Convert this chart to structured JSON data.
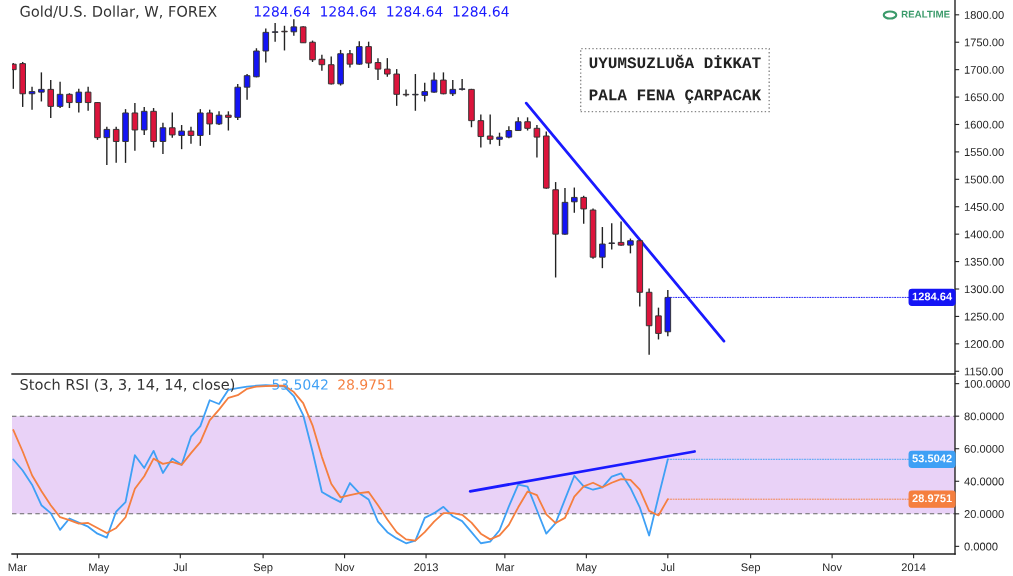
{
  "chart_data": [
    {
      "type": "candlestick",
      "title": "Gold/U.S. Dollar, W, FOREX",
      "subtitle": "1284.64  1284.64  1284.64  1284.64",
      "x": [
        "2012-02-27",
        "2012-03-05",
        "2012-03-12",
        "2012-03-19",
        "2012-03-26",
        "2012-04-02",
        "2012-04-09",
        "2012-04-16",
        "2012-04-23",
        "2012-04-30",
        "2012-05-07",
        "2012-05-14",
        "2012-05-21",
        "2012-05-28",
        "2012-06-04",
        "2012-06-11",
        "2012-06-18",
        "2012-06-25",
        "2012-07-02",
        "2012-07-09",
        "2012-07-16",
        "2012-07-23",
        "2012-07-30",
        "2012-08-06",
        "2012-08-13",
        "2012-08-20",
        "2012-08-27",
        "2012-09-03",
        "2012-09-10",
        "2012-09-17",
        "2012-09-24",
        "2012-10-01",
        "2012-10-08",
        "2012-10-15",
        "2012-10-22",
        "2012-10-29",
        "2012-11-05",
        "2012-11-12",
        "2012-11-19",
        "2012-11-26",
        "2012-12-03",
        "2012-12-10",
        "2012-12-17",
        "2012-12-24",
        "2012-12-31",
        "2013-01-07",
        "2013-01-14",
        "2013-01-21",
        "2013-01-28",
        "2013-02-04",
        "2013-02-11",
        "2013-02-18",
        "2013-02-25",
        "2013-03-04",
        "2013-03-11",
        "2013-03-18",
        "2013-03-25",
        "2013-04-01",
        "2013-04-08",
        "2013-04-15",
        "2013-04-22",
        "2013-04-29",
        "2013-05-06",
        "2013-05-13",
        "2013-05-20",
        "2013-05-27",
        "2013-06-03",
        "2013-06-10",
        "2013-06-17",
        "2013-06-24",
        "2013-07-01"
      ],
      "ohlc": [
        [
          1710,
          1712,
          1665,
          1700
        ],
        [
          1711,
          1714,
          1632,
          1656
        ],
        [
          1656,
          1669,
          1627,
          1660
        ],
        [
          1659,
          1695,
          1642,
          1664
        ],
        [
          1664,
          1681,
          1612,
          1633
        ],
        [
          1633,
          1678,
          1630,
          1655
        ],
        [
          1655,
          1657,
          1630,
          1640
        ],
        [
          1640,
          1665,
          1622,
          1659
        ],
        [
          1659,
          1669,
          1625,
          1640
        ],
        [
          1640,
          1641,
          1572,
          1576
        ],
        [
          1576,
          1596,
          1526,
          1591
        ],
        [
          1591,
          1596,
          1530,
          1569
        ],
        [
          1569,
          1628,
          1530,
          1621
        ],
        [
          1621,
          1639,
          1552,
          1590
        ],
        [
          1590,
          1632,
          1581,
          1624
        ],
        [
          1624,
          1630,
          1558,
          1569
        ],
        [
          1569,
          1603,
          1546,
          1594
        ],
        [
          1594,
          1622,
          1576,
          1581
        ],
        [
          1580,
          1599,
          1555,
          1588
        ],
        [
          1588,
          1596,
          1565,
          1580
        ],
        [
          1580,
          1628,
          1561,
          1621
        ],
        [
          1621,
          1627,
          1581,
          1601
        ],
        [
          1601,
          1624,
          1599,
          1617
        ],
        [
          1617,
          1624,
          1589,
          1613
        ],
        [
          1613,
          1674,
          1608,
          1668
        ],
        [
          1668,
          1692,
          1645,
          1689
        ],
        [
          1687,
          1739,
          1686,
          1734
        ],
        [
          1734,
          1775,
          1713,
          1768
        ],
        [
          1768,
          1785,
          1751,
          1769
        ],
        [
          1770,
          1780,
          1735,
          1769
        ],
        [
          1769,
          1792,
          1762,
          1778
        ],
        [
          1778,
          1779,
          1749,
          1749
        ],
        [
          1750,
          1753,
          1714,
          1718
        ],
        [
          1719,
          1727,
          1698,
          1709
        ],
        [
          1709,
          1724,
          1673,
          1674
        ],
        [
          1674,
          1736,
          1671,
          1729
        ],
        [
          1729,
          1736,
          1704,
          1710
        ],
        [
          1710,
          1752,
          1709,
          1742
        ],
        [
          1742,
          1751,
          1703,
          1712
        ],
        [
          1713,
          1721,
          1681,
          1701
        ],
        [
          1701,
          1721,
          1687,
          1692
        ],
        [
          1692,
          1701,
          1634,
          1655
        ],
        [
          1655,
          1664,
          1651,
          1654
        ],
        [
          1654,
          1692,
          1625,
          1655
        ],
        [
          1653,
          1676,
          1642,
          1660
        ],
        [
          1659,
          1695,
          1658,
          1681
        ],
        [
          1681,
          1695,
          1655,
          1656
        ],
        [
          1656,
          1681,
          1652,
          1664
        ],
        [
          1664,
          1683,
          1662,
          1665
        ],
        [
          1664,
          1665,
          1595,
          1607
        ],
        [
          1607,
          1618,
          1558,
          1578
        ],
        [
          1579,
          1618,
          1564,
          1573
        ],
        [
          1573,
          1585,
          1561,
          1577
        ],
        [
          1577,
          1597,
          1575,
          1589
        ],
        [
          1589,
          1613,
          1588,
          1605
        ],
        [
          1605,
          1613,
          1589,
          1593
        ],
        [
          1593,
          1599,
          1540,
          1577
        ],
        [
          1579,
          1587,
          1483,
          1484
        ],
        [
          1481,
          1495,
          1321,
          1400
        ],
        [
          1400,
          1484,
          1399,
          1458
        ],
        [
          1459,
          1485,
          1439,
          1467
        ],
        [
          1467,
          1470,
          1419,
          1446
        ],
        [
          1444,
          1447,
          1355,
          1358
        ],
        [
          1358,
          1413,
          1338,
          1382
        ],
        [
          1383,
          1420,
          1372,
          1384
        ],
        [
          1385,
          1423,
          1379,
          1380
        ],
        [
          1380,
          1392,
          1365,
          1388
        ],
        [
          1388,
          1390,
          1268,
          1294
        ],
        [
          1294,
          1301,
          1180,
          1233
        ],
        [
          1251,
          1266,
          1208,
          1219
        ],
        [
          1222,
          1298,
          1214,
          1284.64
        ]
      ],
      "colors": [
        "#dc143c",
        "#dc143c",
        "#1414f5",
        "#1414f5",
        "#dc143c",
        "#1414f5",
        "#dc143c",
        "#1414f5",
        "#dc143c",
        "#dc143c",
        "#1414f5",
        "#dc143c",
        "#1414f5",
        "#dc143c",
        "#1414f5",
        "#dc143c",
        "#1414f5",
        "#dc143c",
        "#1414f5",
        "#dc143c",
        "#1414f5",
        "#dc143c",
        "#1414f5",
        "#dc143c",
        "#1414f5",
        "#1414f5",
        "#1414f5",
        "#1414f5",
        "#1414f5",
        "#dc143c",
        "#1414f5",
        "#dc143c",
        "#dc143c",
        "#dc143c",
        "#dc143c",
        "#1414f5",
        "#dc143c",
        "#1414f5",
        "#dc143c",
        "#dc143c",
        "#dc143c",
        "#dc143c",
        "#dc143c",
        "#1414f5",
        "#1414f5",
        "#1414f5",
        "#dc143c",
        "#1414f5",
        "#1414f5",
        "#dc143c",
        "#dc143c",
        "#dc143c",
        "#1414f5",
        "#1414f5",
        "#1414f5",
        "#dc143c",
        "#dc143c",
        "#dc143c",
        "#dc143c",
        "#1414f5",
        "#1414f5",
        "#dc143c",
        "#dc143c",
        "#1414f5",
        "#1414f5",
        "#dc143c",
        "#1414f5",
        "#dc143c",
        "#dc143c",
        "#dc143c",
        "#1414f5"
      ],
      "series": [
        {
          "type": "line",
          "x": [
            "2013-03-17",
            "2013-08-12"
          ],
          "values": [
            1639,
            1205
          ],
          "color": "#1a1aff"
        }
      ],
      "xlim": [
        "2012-02-26",
        "2014-02-01"
      ],
      "ylim": [
        1145,
        1827
      ],
      "yticks": [
        {
          "value": 1150,
          "label": "1150.00"
        },
        {
          "value": 1200,
          "label": "1200.00"
        },
        {
          "value": 1250,
          "label": "1250.00"
        },
        {
          "value": 1300,
          "label": "1300.00"
        },
        {
          "value": 1350,
          "label": "1350.00"
        },
        {
          "value": 1400,
          "label": "1400.00"
        },
        {
          "value": 1450,
          "label": "1450.00"
        },
        {
          "value": 1500,
          "label": "1500.00"
        },
        {
          "value": 1550,
          "label": "1550.00"
        },
        {
          "value": 1600,
          "label": "1600.00"
        },
        {
          "value": 1650,
          "label": "1650.00"
        },
        {
          "value": 1700,
          "label": "1700.00"
        },
        {
          "value": 1750,
          "label": "1750.00"
        },
        {
          "value": 1800,
          "label": "1800.00"
        }
      ],
      "tick_labels": "y",
      "annotations": [
        "UYUMSUZLUĞA DİKKAT",
        "PALA FENA ÇARPACAK",
        "REALTIME",
        {
          "text": "1284.64",
          "x": "2013-07-01",
          "y": 1284.64
        }
      ]
    },
    {
      "type": "line",
      "title": "Stoch RSI (3, 3, 14, 14, close)",
      "x": [
        "2012-02-27",
        "2012-03-05",
        "2012-03-12",
        "2012-03-19",
        "2012-03-26",
        "2012-04-02",
        "2012-04-09",
        "2012-04-16",
        "2012-04-23",
        "2012-04-30",
        "2012-05-07",
        "2012-05-14",
        "2012-05-21",
        "2012-05-28",
        "2012-06-04",
        "2012-06-11",
        "2012-06-18",
        "2012-06-25",
        "2012-07-02",
        "2012-07-09",
        "2012-07-16",
        "2012-07-23",
        "2012-07-30",
        "2012-08-06",
        "2012-08-13",
        "2012-08-20",
        "2012-08-27",
        "2012-09-03",
        "2012-09-10",
        "2012-09-17",
        "2012-09-24",
        "2012-10-01",
        "2012-10-08",
        "2012-10-15",
        "2012-10-22",
        "2012-10-29",
        "2012-11-05",
        "2012-11-12",
        "2012-11-19",
        "2012-11-26",
        "2012-12-03",
        "2012-12-10",
        "2012-12-17",
        "2012-12-24",
        "2012-12-31",
        "2013-01-07",
        "2013-01-14",
        "2013-01-21",
        "2013-01-28",
        "2013-02-04",
        "2013-02-11",
        "2013-02-18",
        "2013-02-25",
        "2013-03-04",
        "2013-03-11",
        "2013-03-18",
        "2013-03-25",
        "2013-04-01",
        "2013-04-08",
        "2013-04-15",
        "2013-04-22",
        "2013-04-29",
        "2013-05-06",
        "2013-05-13",
        "2013-05-20",
        "2013-05-27",
        "2013-06-03",
        "2013-06-10",
        "2013-06-17",
        "2013-06-24",
        "2013-07-01"
      ],
      "series": [
        {
          "color": "#3fa0f5",
          "values": [
            53.4,
            46.6,
            37.9,
            25.3,
            20.4,
            10.1,
            17.1,
            14.6,
            12.1,
            7.8,
            5.4,
            21.4,
            27.2,
            56.0,
            48.2,
            58.7,
            45.1,
            54.0,
            50.1,
            67.4,
            73.9,
            89.8,
            87.5,
            96.2,
            97.2,
            98.2,
            98.7,
            99.1,
            98.7,
            98.2,
            92.3,
            80.7,
            58.3,
            33.4,
            30.1,
            27.2,
            38.9,
            32.7,
            28.8,
            15.2,
            8.7,
            4.9,
            1.9,
            3.5,
            17.5,
            20.4,
            24.3,
            18.5,
            15.5,
            8.7,
            1.9,
            2.9,
            9.9,
            24.6,
            38.0,
            36.7,
            22.2,
            7.8,
            14.3,
            28.9,
            43.4,
            36.9,
            34.8,
            36.3,
            42.8,
            44.9,
            35.9,
            24.0,
            6.7,
            30.5,
            53.5
          ]
        },
        {
          "color": "#f57f3f",
          "values": [
            71.5,
            58.3,
            43.7,
            34.0,
            25.3,
            17.9,
            16.1,
            14.0,
            14.4,
            11.3,
            8.2,
            11.3,
            17.9,
            35.4,
            43.1,
            53.9,
            50.7,
            51.9,
            50.1,
            57.3,
            64.1,
            77.4,
            84.0,
            91.3,
            92.9,
            96.8,
            98.2,
            98.5,
            98.7,
            98.7,
            94.8,
            88.0,
            74.4,
            55.0,
            38.5,
            30.1,
            31.5,
            32.7,
            33.4,
            25.3,
            16.5,
            8.7,
            4.3,
            3.5,
            8.7,
            15.2,
            20.4,
            20.4,
            19.4,
            14.6,
            7.8,
            4.3,
            6.7,
            13.2,
            24.0,
            33.7,
            31.5,
            19.7,
            14.3,
            17.5,
            30.5,
            36.9,
            39.1,
            36.3,
            39.1,
            41.3,
            40.8,
            34.8,
            21.8,
            19.0,
            29.0
          ]
        },
        {
          "type": "line",
          "x": [
            "2013-02-03",
            "2013-07-21"
          ],
          "values": [
            33.8,
            58.3
          ],
          "color": "#1a1aff"
        }
      ],
      "bands": [
        {
          "axis": "y",
          "from": 20,
          "to": 80,
          "color": "#e9d2f7"
        }
      ],
      "xlim": [
        "2012-02-26",
        "2014-02-01"
      ],
      "xticks": [
        {
          "value": "2012-03-01",
          "label": "Mar"
        },
        {
          "value": "2012-05-01",
          "label": "May"
        },
        {
          "value": "2012-07-01",
          "label": "Jul"
        },
        {
          "value": "2012-09-01",
          "label": "Sep"
        },
        {
          "value": "2012-11-01",
          "label": "Nov"
        },
        {
          "value": "2013-01-01",
          "label": "2013"
        },
        {
          "value": "2013-03-01",
          "label": "Mar"
        },
        {
          "value": "2013-05-01",
          "label": "May"
        },
        {
          "value": "2013-07-01",
          "label": "Jul"
        },
        {
          "value": "2013-09-01",
          "label": "Sep"
        },
        {
          "value": "2013-11-01",
          "label": "Nov"
        },
        {
          "value": "2014-01-01",
          "label": "2014"
        }
      ],
      "ylim": [
        -4.7,
        104.7
      ],
      "yticks": [
        {
          "value": 0,
          "label": "0.0000"
        },
        {
          "value": 20,
          "label": "20.0000"
        },
        {
          "value": 40,
          "label": "40.0000"
        },
        {
          "value": 60,
          "label": "60.0000"
        },
        {
          "value": 80,
          "label": "80.0000"
        },
        {
          "value": 100,
          "label": "100.0000"
        }
      ],
      "annotations": [
        {
          "text": "53.5042",
          "x": "2013-07-01",
          "y": 53.5042
        },
        {
          "text": "28.9751",
          "x": "2013-07-01",
          "y": 28.9751
        }
      ]
    }
  ]
}
